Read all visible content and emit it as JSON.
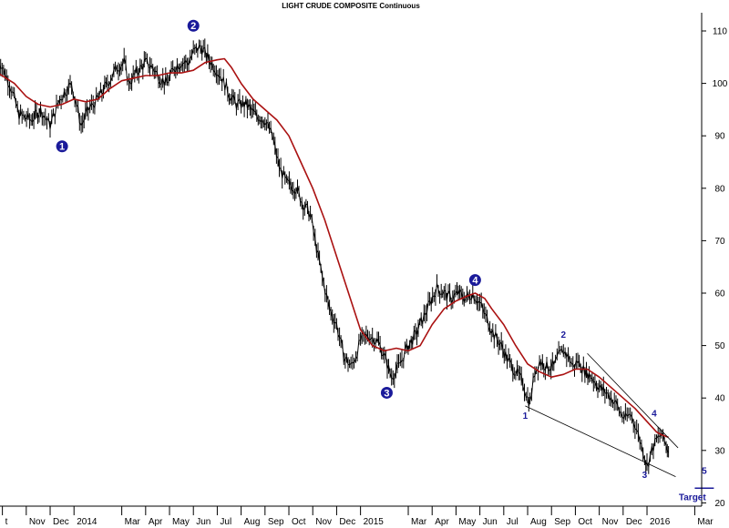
{
  "chart_data": {
    "type": "line",
    "title": "LIGHT CRUDE COMPOSITE Continuous",
    "xlabel": "",
    "ylabel": "",
    "ylim": [
      20,
      113
    ],
    "yticks": [
      20,
      30,
      40,
      50,
      60,
      70,
      80,
      90,
      100,
      110
    ],
    "grid": false,
    "x_tick_labels": [
      "Oct",
      "Nov",
      "Dec",
      "2014",
      "Mar",
      "Apr",
      "May",
      "Jun",
      "Jul",
      "Aug",
      "Sep",
      "Oct",
      "Nov",
      "Dec",
      "2015",
      "Mar",
      "Apr",
      "May",
      "Jun",
      "Jul",
      "Aug",
      "Sep",
      "Oct",
      "Nov",
      "Dec",
      "2016",
      "Mar"
    ],
    "x_tick_labels_displayed": [
      "t",
      "Nov",
      "Dec",
      "2014",
      "Mar",
      "Apr",
      "May",
      "Jun",
      "Jul",
      "Aug",
      "Sep",
      "Oct",
      "Nov",
      "Dec",
      "2015",
      "Mar",
      "Apr",
      "May",
      "Jun",
      "Jul",
      "Aug",
      "Sep",
      "Oct",
      "Nov",
      "Dec",
      "2016",
      "Mar"
    ],
    "x_tick_months": [
      0,
      1,
      2,
      3,
      5,
      6,
      7,
      8,
      9,
      10,
      11,
      12,
      13,
      14,
      15,
      17,
      18,
      19,
      20,
      21,
      22,
      23,
      24,
      25,
      26,
      27,
      29
    ],
    "x_range_months": [
      0,
      30
    ],
    "series": [
      {
        "kind": "price",
        "color": "#000000",
        "points": [
          [
            -0.2,
            105
          ],
          [
            0.3,
            100
          ],
          [
            0.7,
            94
          ],
          [
            1.2,
            93
          ],
          [
            1.6,
            95
          ],
          [
            2.0,
            92
          ],
          [
            2.4,
            97
          ],
          [
            2.9,
            100
          ],
          [
            3.1,
            96
          ],
          [
            3.3,
            92
          ],
          [
            3.6,
            95
          ],
          [
            4.0,
            97
          ],
          [
            4.4,
            100
          ],
          [
            4.8,
            103
          ],
          [
            5.1,
            104
          ],
          [
            5.3,
            100
          ],
          [
            5.6,
            102
          ],
          [
            6.0,
            104
          ],
          [
            6.3,
            103
          ],
          [
            6.6,
            101
          ],
          [
            6.9,
            100
          ],
          [
            7.2,
            103
          ],
          [
            7.5,
            104
          ],
          [
            7.8,
            104
          ],
          [
            8.0,
            106
          ],
          [
            8.3,
            107
          ],
          [
            8.6,
            105
          ],
          [
            8.9,
            103
          ],
          [
            9.2,
            101
          ],
          [
            9.5,
            98
          ],
          [
            9.8,
            96
          ],
          [
            10.2,
            96
          ],
          [
            10.6,
            94
          ],
          [
            11.0,
            93
          ],
          [
            11.3,
            90
          ],
          [
            11.6,
            84
          ],
          [
            11.9,
            81
          ],
          [
            12.3,
            80
          ],
          [
            12.6,
            77
          ],
          [
            12.9,
            75
          ],
          [
            13.1,
            70
          ],
          [
            13.4,
            63
          ],
          [
            13.7,
            57
          ],
          [
            14.0,
            54
          ],
          [
            14.3,
            48
          ],
          [
            14.6,
            46
          ],
          [
            14.8,
            48
          ],
          [
            15.0,
            51
          ],
          [
            15.3,
            52
          ],
          [
            15.7,
            51
          ],
          [
            16.0,
            48
          ],
          [
            16.3,
            44
          ],
          [
            16.6,
            46
          ],
          [
            17.0,
            50
          ],
          [
            17.3,
            52
          ],
          [
            17.6,
            55
          ],
          [
            17.9,
            58
          ],
          [
            18.2,
            61
          ],
          [
            18.5,
            60
          ],
          [
            18.8,
            59
          ],
          [
            19.1,
            60
          ],
          [
            19.4,
            59
          ],
          [
            19.7,
            60
          ],
          [
            20.0,
            58
          ],
          [
            20.3,
            55
          ],
          [
            20.6,
            52
          ],
          [
            20.9,
            50
          ],
          [
            21.2,
            47
          ],
          [
            21.5,
            45
          ],
          [
            21.8,
            43
          ],
          [
            22.0,
            40
          ],
          [
            22.1,
            39
          ],
          [
            22.3,
            45
          ],
          [
            22.5,
            47
          ],
          [
            22.8,
            46
          ],
          [
            23.1,
            46
          ],
          [
            23.3,
            48
          ],
          [
            23.5,
            49
          ],
          [
            23.7,
            48
          ],
          [
            23.9,
            46
          ],
          [
            24.1,
            47
          ],
          [
            24.4,
            45
          ],
          [
            24.7,
            44
          ],
          [
            25.0,
            42
          ],
          [
            25.3,
            41
          ],
          [
            25.5,
            40
          ],
          [
            25.7,
            39
          ],
          [
            25.9,
            37
          ],
          [
            26.1,
            36
          ],
          [
            26.3,
            37
          ],
          [
            26.5,
            35
          ],
          [
            26.7,
            32
          ],
          [
            26.9,
            29
          ],
          [
            27.0,
            27
          ],
          [
            27.2,
            30
          ],
          [
            27.4,
            32
          ],
          [
            27.6,
            33
          ],
          [
            27.8,
            31
          ],
          [
            27.9,
            30
          ]
        ]
      },
      {
        "kind": "moving-average",
        "color": "#aa1111",
        "points": [
          [
            -0.2,
            102
          ],
          [
            0.5,
            100
          ],
          [
            1.0,
            97.5
          ],
          [
            1.5,
            96
          ],
          [
            2.0,
            95.5
          ],
          [
            2.5,
            96
          ],
          [
            3.0,
            97
          ],
          [
            3.5,
            96.5
          ],
          [
            4.0,
            97
          ],
          [
            4.5,
            99
          ],
          [
            5.0,
            100.5
          ],
          [
            5.5,
            101
          ],
          [
            6.0,
            101.5
          ],
          [
            6.5,
            101.5
          ],
          [
            7.0,
            102
          ],
          [
            7.5,
            102
          ],
          [
            8.0,
            102.5
          ],
          [
            8.5,
            104
          ],
          [
            9.0,
            104.5
          ],
          [
            9.3,
            104.7
          ],
          [
            9.6,
            103
          ],
          [
            10.0,
            100
          ],
          [
            10.5,
            97
          ],
          [
            11.0,
            95
          ],
          [
            11.5,
            93
          ],
          [
            12.0,
            90
          ],
          [
            12.5,
            85
          ],
          [
            13.0,
            80
          ],
          [
            13.5,
            74
          ],
          [
            14.0,
            67
          ],
          [
            14.5,
            60
          ],
          [
            15.0,
            53
          ],
          [
            15.5,
            50
          ],
          [
            16.0,
            49
          ],
          [
            16.5,
            49.5
          ],
          [
            17.0,
            49
          ],
          [
            17.5,
            50
          ],
          [
            18.0,
            54
          ],
          [
            18.5,
            57
          ],
          [
            19.0,
            58.5
          ],
          [
            19.5,
            59.5
          ],
          [
            19.8,
            60
          ],
          [
            20.2,
            59
          ],
          [
            20.5,
            57
          ],
          [
            21.0,
            54
          ],
          [
            21.5,
            50
          ],
          [
            22.0,
            46.5
          ],
          [
            22.5,
            45
          ],
          [
            23.0,
            44
          ],
          [
            23.5,
            44.5
          ],
          [
            24.0,
            45.5
          ],
          [
            24.5,
            45.5
          ],
          [
            25.0,
            44
          ],
          [
            25.5,
            42
          ],
          [
            26.0,
            40
          ],
          [
            26.5,
            38
          ],
          [
            27.0,
            35.5
          ],
          [
            27.4,
            33.5
          ],
          [
            27.6,
            33
          ],
          [
            27.9,
            32.5
          ]
        ]
      }
    ],
    "trendlines": [
      {
        "color": "#000000",
        "from": [
          21.9,
          38.5
        ],
        "to": [
          28.2,
          25
        ]
      },
      {
        "color": "#000000",
        "from": [
          24.5,
          48.5
        ],
        "to": [
          28.3,
          30.5
        ]
      }
    ],
    "target_line": {
      "color": "#1a1a9a",
      "from": [
        29.0,
        22.8
      ],
      "to": [
        29.8,
        22.8
      ]
    },
    "annotations": [
      {
        "label": "1",
        "style": "circle",
        "x": 2.5,
        "y": 88
      },
      {
        "label": "2",
        "style": "circle",
        "x": 8.0,
        "y": 111
      },
      {
        "label": "3",
        "style": "circle",
        "x": 16.1,
        "y": 41
      },
      {
        "label": "4",
        "style": "circle",
        "x": 19.8,
        "y": 62.5
      },
      {
        "label": "1",
        "style": "text",
        "x": 21.9,
        "y": 36
      },
      {
        "label": "2",
        "style": "text",
        "x": 23.5,
        "y": 51.5
      },
      {
        "label": "3",
        "style": "text",
        "x": 26.9,
        "y": 24.8
      },
      {
        "label": "4",
        "style": "text",
        "x": 27.3,
        "y": 36.5
      },
      {
        "label": "5",
        "style": "text",
        "x": 29.4,
        "y": 25.5
      },
      {
        "label": "Target",
        "style": "text",
        "x": 28.9,
        "y": 20.5
      }
    ]
  }
}
